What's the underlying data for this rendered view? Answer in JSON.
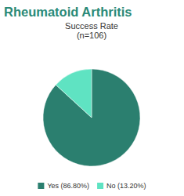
{
  "chart_data": {
    "type": "pie",
    "title": "Rheumatoid Arthritis",
    "subtitle": "Success Rate",
    "annotations": [
      "(n=106)"
    ],
    "categories": [
      "Yes (86.80%)",
      "No (13.20%)"
    ],
    "values": [
      86.8,
      13.2
    ],
    "colors": [
      "#2b7f6f",
      "#5fe3c2"
    ],
    "legend": "bottom"
  }
}
